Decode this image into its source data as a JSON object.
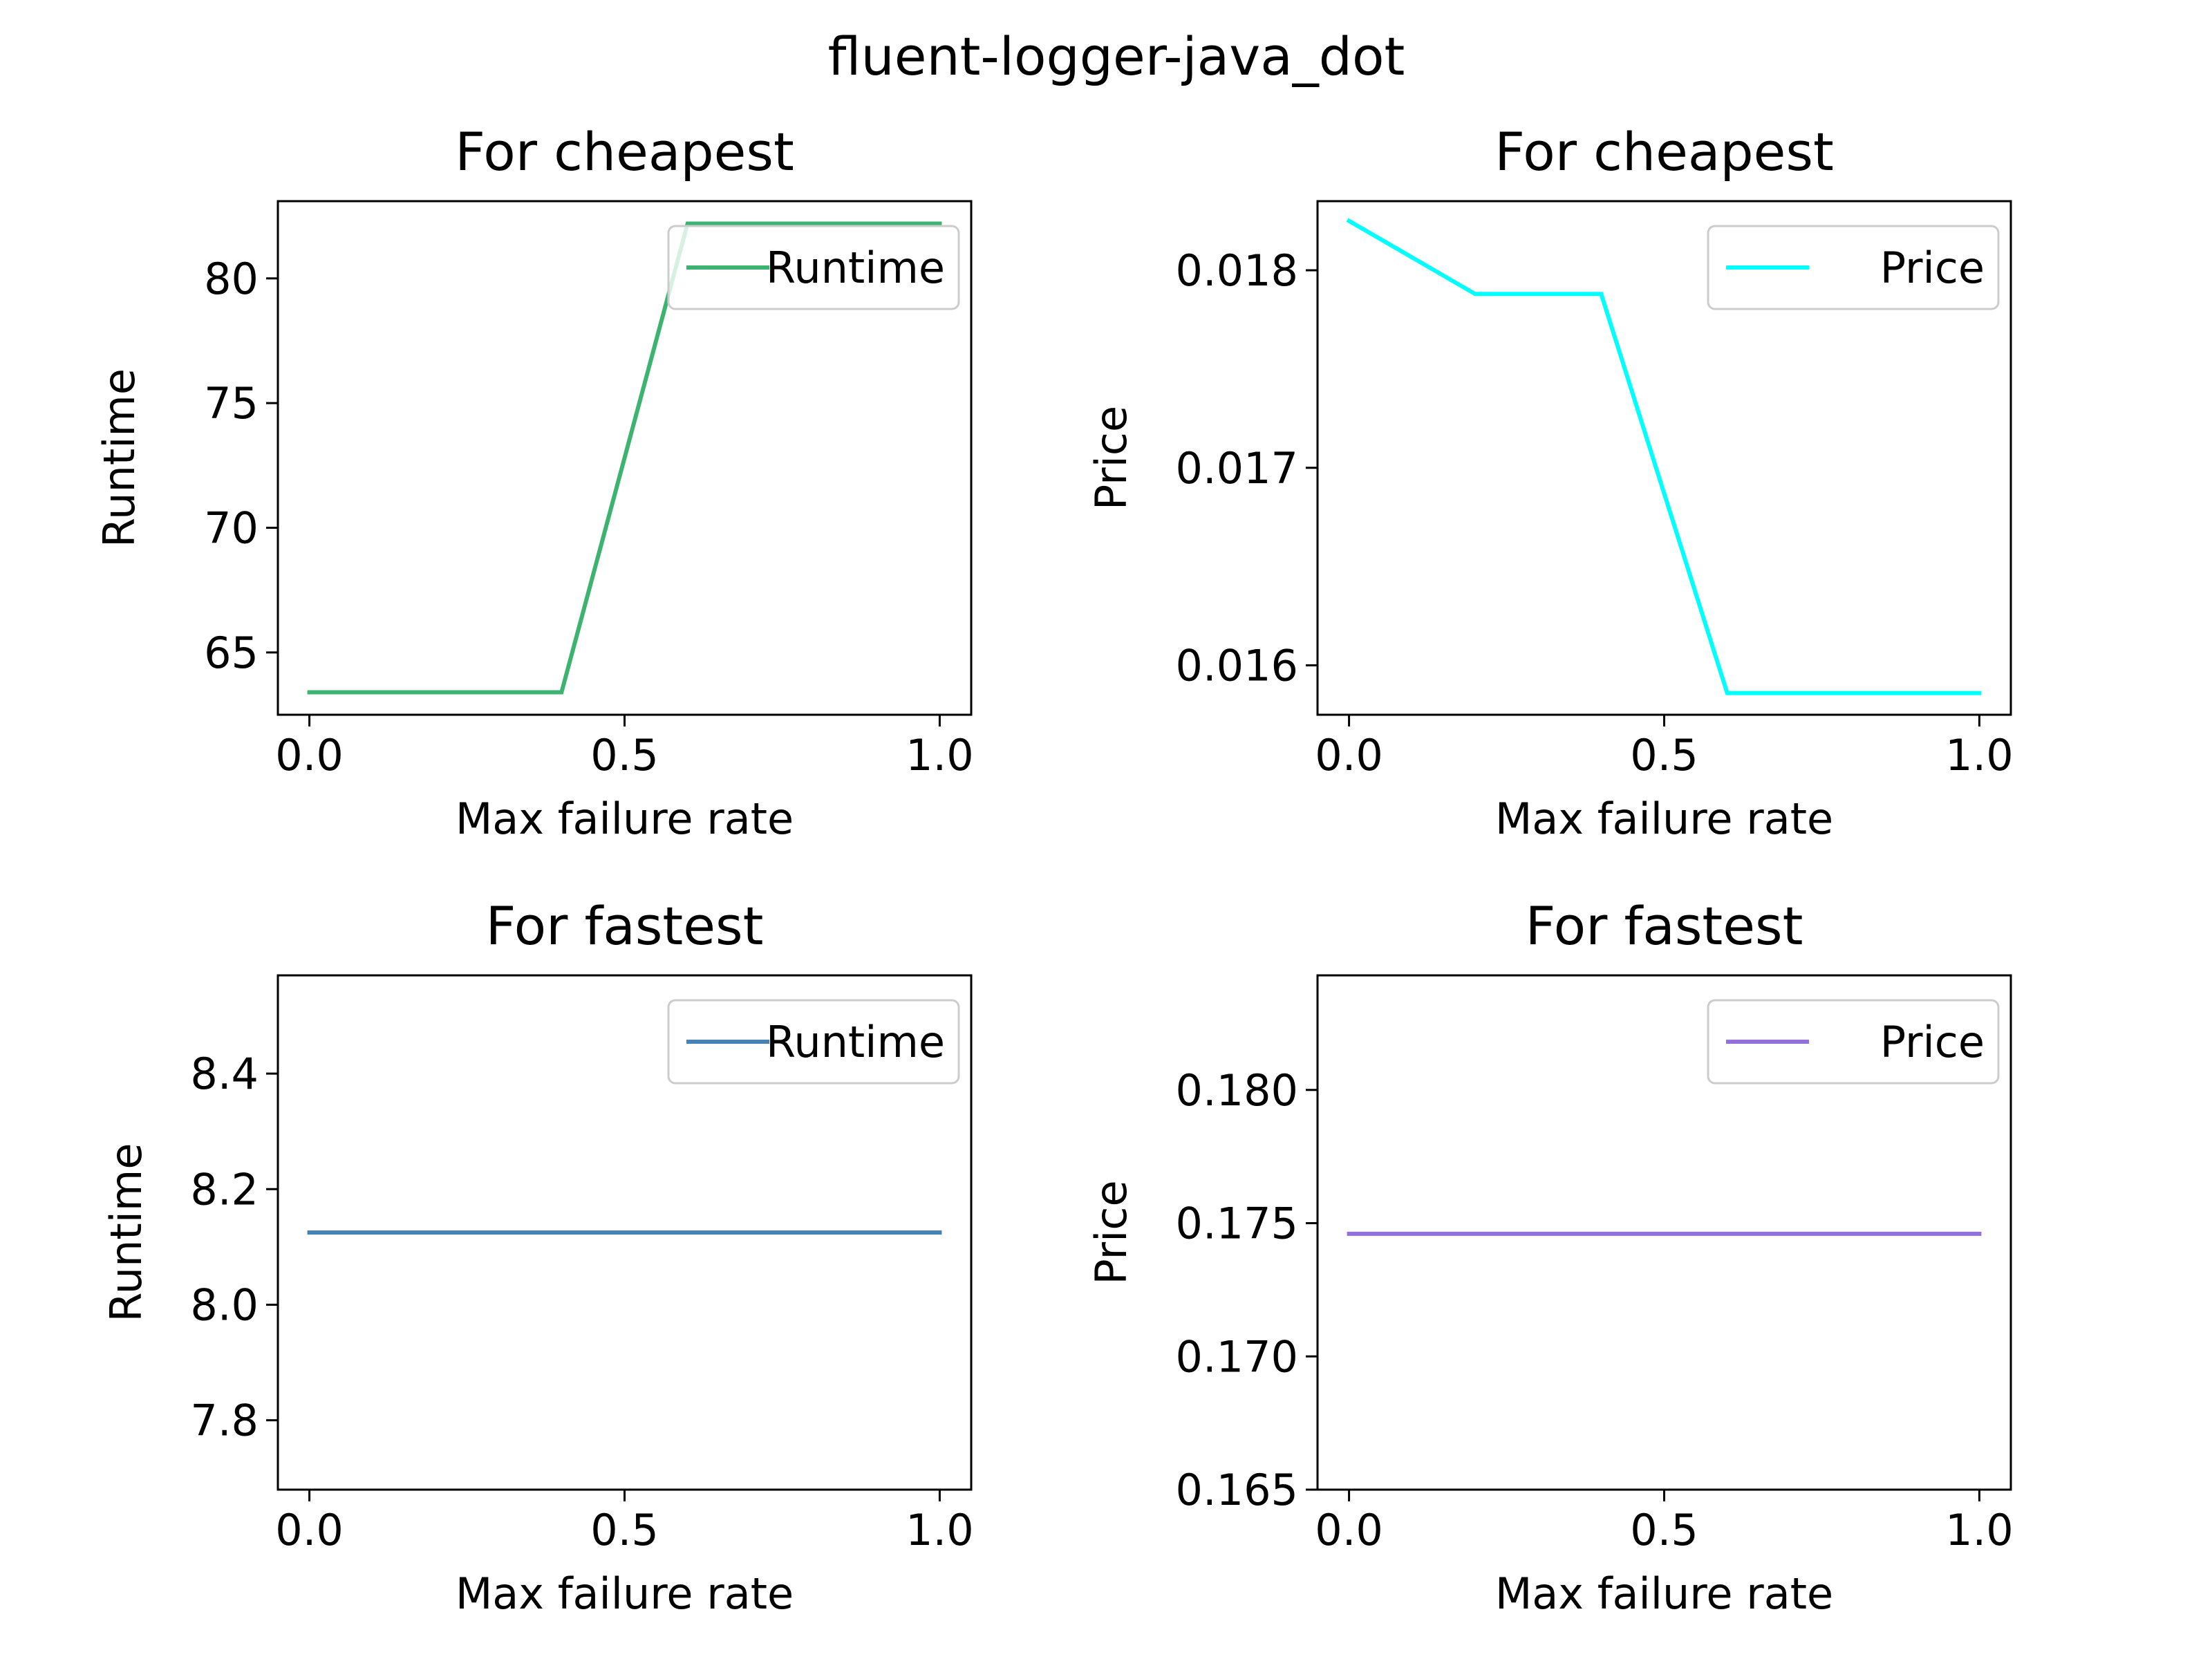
{
  "suptitle": "fluent-logger-java_dot",
  "chart_data": [
    {
      "type": "line",
      "title": "For cheapest",
      "xlabel": "Max failure rate",
      "ylabel": "Runtime",
      "xlim": [
        -0.05,
        1.05
      ],
      "ylim": [
        62.5,
        83.1
      ],
      "xticks": [
        0.0,
        0.5,
        1.0
      ],
      "xticklabels": [
        "0.0",
        "0.5",
        "1.0"
      ],
      "yticks": [
        65,
        70,
        75,
        80
      ],
      "yticklabels": [
        "65",
        "70",
        "75",
        "80"
      ],
      "legend": "top-right",
      "series": [
        {
          "name": "Runtime",
          "color": "#3cb371",
          "x": [
            0.0,
            0.2,
            0.4,
            0.6,
            0.8,
            1.0
          ],
          "y": [
            63.4,
            63.4,
            63.4,
            82.2,
            82.2,
            82.2
          ]
        }
      ]
    },
    {
      "type": "line",
      "title": "For cheapest",
      "xlabel": "Max failure rate",
      "ylabel": "Price",
      "xlim": [
        -0.05,
        1.05
      ],
      "ylim": [
        0.01575,
        0.01835
      ],
      "xticks": [
        0.0,
        0.5,
        1.0
      ],
      "xticklabels": [
        "0.0",
        "0.5",
        "1.0"
      ],
      "yticks": [
        0.016,
        0.017,
        0.018
      ],
      "yticklabels": [
        "0.016",
        "0.017",
        "0.018"
      ],
      "legend": "top-right",
      "series": [
        {
          "name": "Price",
          "color": "#00ffff",
          "x": [
            0.0,
            0.2,
            0.4,
            0.6,
            0.8,
            1.0
          ],
          "y": [
            0.01825,
            0.01788,
            0.01788,
            0.01586,
            0.01586,
            0.01586
          ]
        }
      ]
    },
    {
      "type": "line",
      "title": "For fastest",
      "xlabel": "Max failure rate",
      "ylabel": "Runtime",
      "xlim": [
        -0.05,
        1.05
      ],
      "ylim": [
        7.68,
        8.57
      ],
      "xticks": [
        0.0,
        0.5,
        1.0
      ],
      "xticklabels": [
        "0.0",
        "0.5",
        "1.0"
      ],
      "yticks": [
        7.8,
        8.0,
        8.2,
        8.4
      ],
      "yticklabels": [
        "7.8",
        "8.0",
        "8.2",
        "8.4"
      ],
      "legend": "top-right",
      "series": [
        {
          "name": "Runtime",
          "color": "#4682b4",
          "x": [
            0.0,
            0.2,
            0.4,
            0.6,
            0.8,
            1.0
          ],
          "y": [
            8.125,
            8.125,
            8.125,
            8.125,
            8.125,
            8.125
          ]
        }
      ]
    },
    {
      "type": "line",
      "title": "For fastest",
      "xlabel": "Max failure rate",
      "ylabel": "Price",
      "xlim": [
        -0.05,
        1.05
      ],
      "ylim": [
        0.165,
        0.1843
      ],
      "xticks": [
        0.0,
        0.5,
        1.0
      ],
      "xticklabels": [
        "0.0",
        "0.5",
        "1.0"
      ],
      "yticks": [
        0.165,
        0.17,
        0.175,
        0.18
      ],
      "yticklabels": [
        "0.165",
        "0.170",
        "0.175",
        "0.180"
      ],
      "legend": "top-right",
      "series": [
        {
          "name": "Price",
          "color": "#9370db",
          "x": [
            0.0,
            0.2,
            0.4,
            0.6,
            0.8,
            1.0
          ],
          "y": [
            0.1746,
            0.1746,
            0.1746,
            0.1746,
            0.1746,
            0.1746
          ]
        }
      ]
    }
  ]
}
